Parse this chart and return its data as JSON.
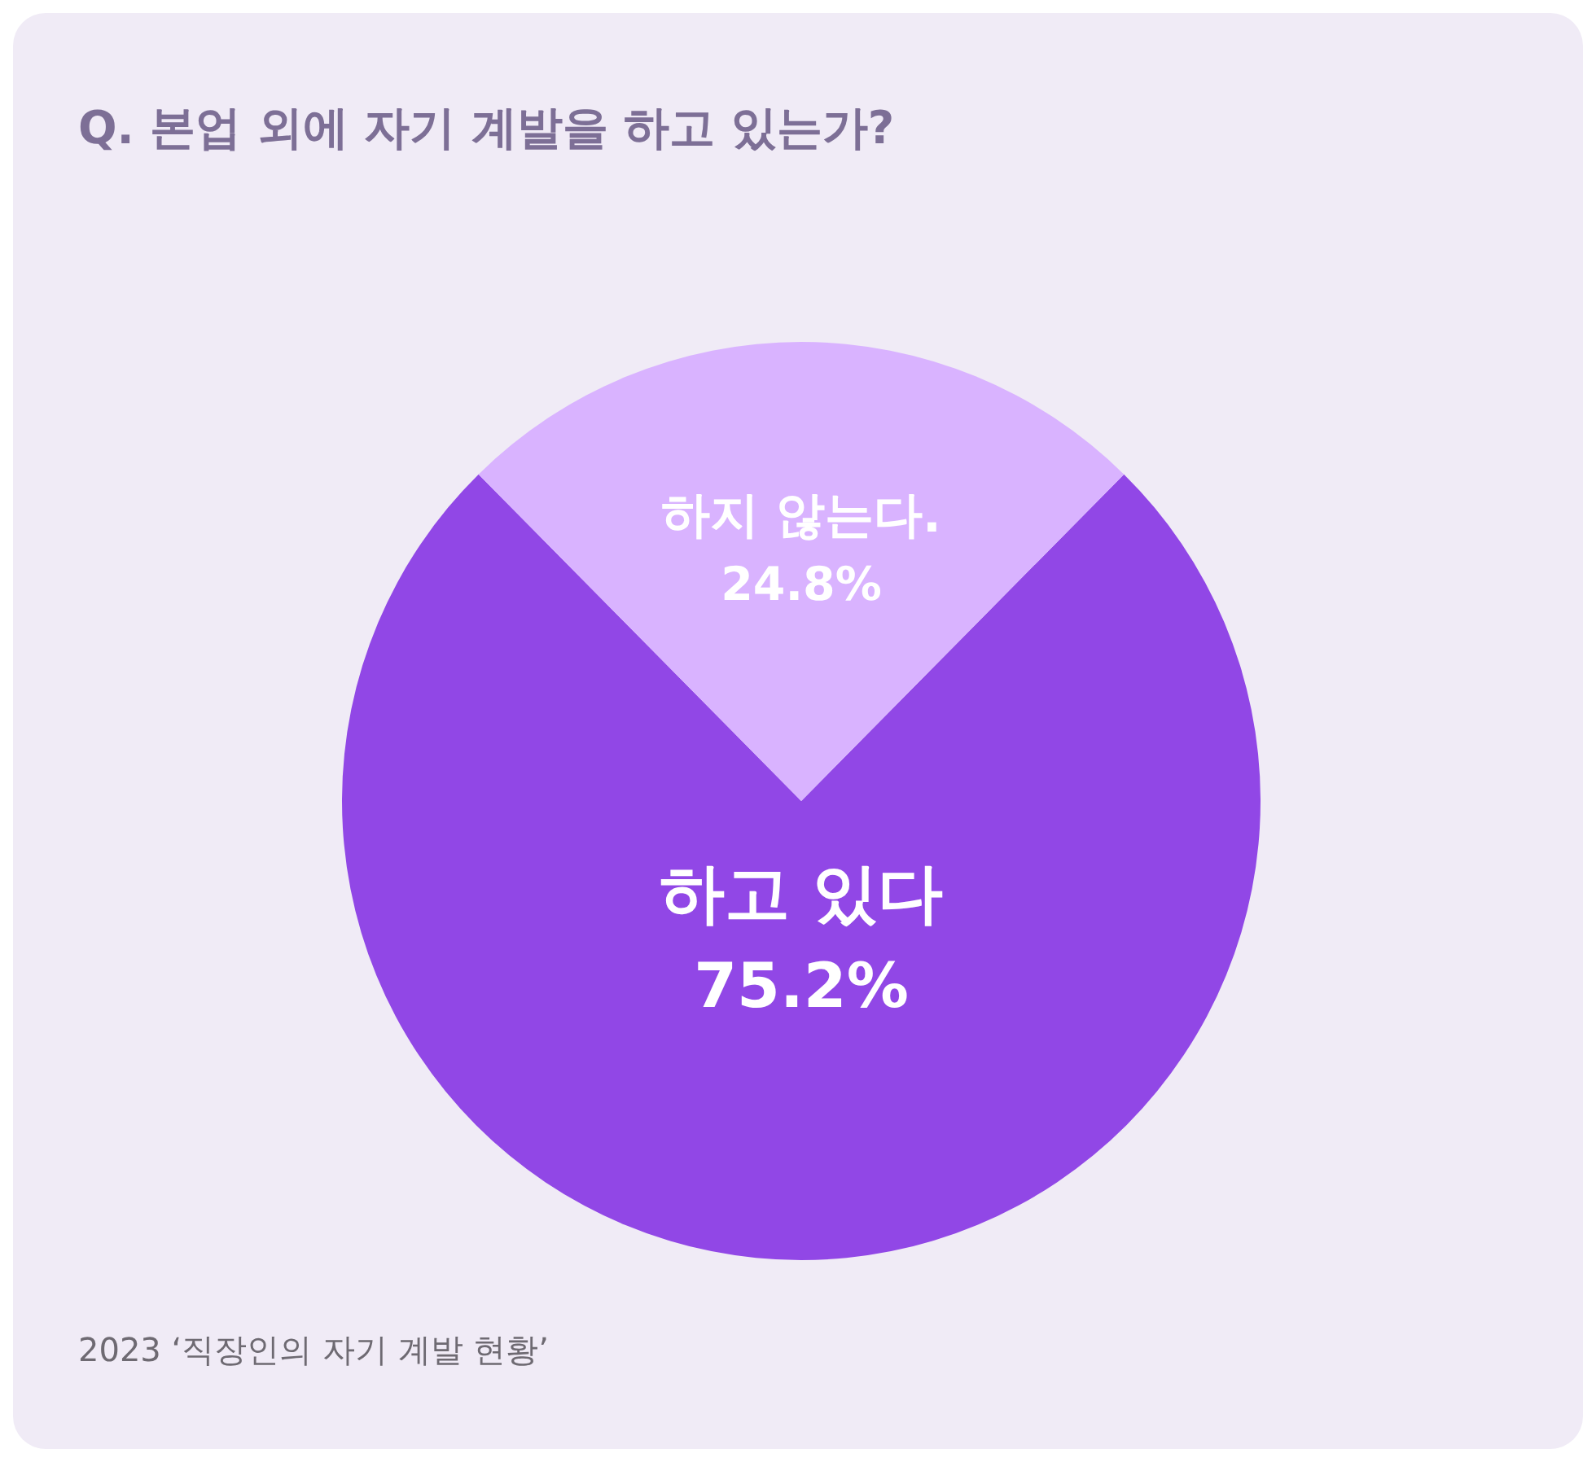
{
  "chart_data": {
    "type": "pie",
    "title": "Q. 본업 외에 자기 계발을 하고 있는가?",
    "categories": [
      "하고 있다",
      "하지 않는다."
    ],
    "values": [
      75.2,
      24.8
    ],
    "value_labels": [
      "75.2%",
      "24.8%"
    ],
    "colors": [
      "#9147e6",
      "#d9b3ff"
    ],
    "annotations": [
      "2023 ‘직장인의 자기 계발 현황’"
    ]
  }
}
